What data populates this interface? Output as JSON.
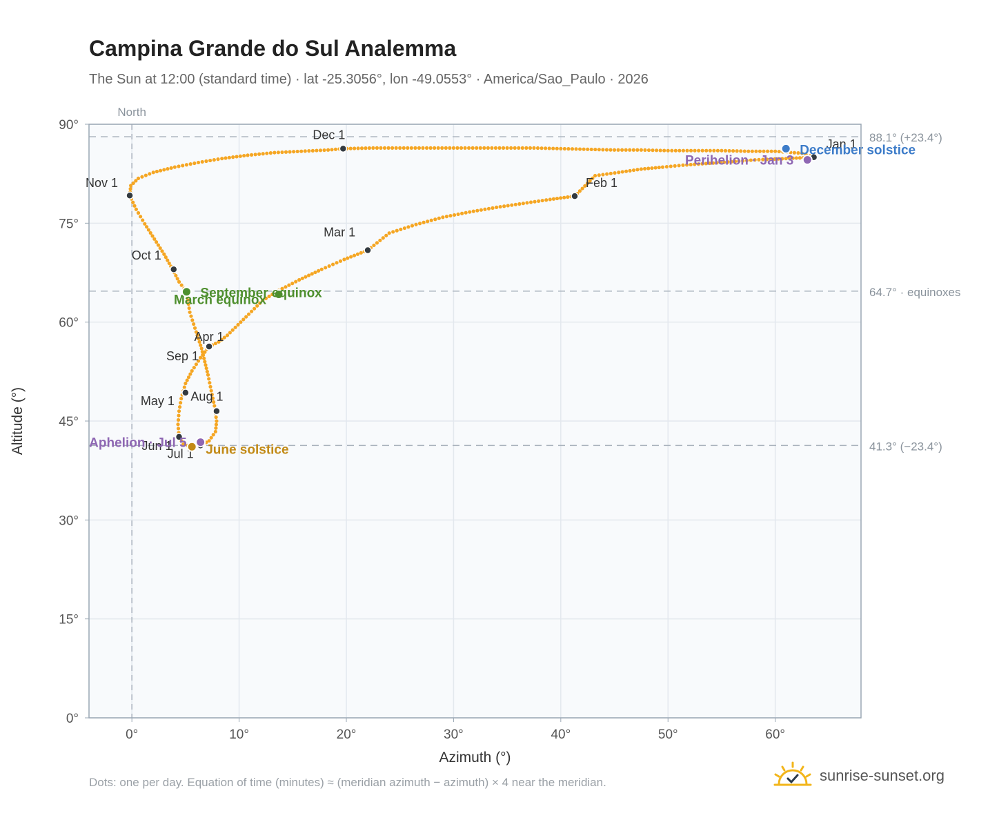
{
  "title": "Campina Grande do Sul Analemma",
  "subtitle": "The Sun at 12:00 (standard time) · lat -25.3056°, lon -49.0553° · America/Sao_Paulo · 2026",
  "footnote": "Dots: one per day. Equation of time (minutes) ≈ (meridian azimuth − azimuth) × 4 near the meridian.",
  "brand": {
    "name": "sunrise-sunset.org",
    "logo_icon": "sun-check-icon"
  },
  "colors": {
    "path": "#f5a623",
    "month_marker": "#333a40",
    "equinox": "#4e8f2e",
    "solstice_june": "#c28a16",
    "solstice_december": "#3d7cc9",
    "perihelion_aphelion": "#8e67b3",
    "plot_bg": "#f8fafc",
    "grid": "#e3e8ee",
    "reference_line": "#a9b2bc"
  },
  "chart_data": {
    "type": "scatter",
    "xlabel": "Azimuth (°)",
    "ylabel": "Altitude (°)",
    "xlim": [
      -4,
      68
    ],
    "ylim": [
      0,
      90
    ],
    "x_ticks": [
      0,
      10,
      20,
      30,
      40,
      50,
      60
    ],
    "x_tick_labels": [
      "0°",
      "10°",
      "20°",
      "30°",
      "40°",
      "50°",
      "60°"
    ],
    "y_ticks": [
      0,
      15,
      30,
      45,
      60,
      75,
      90
    ],
    "y_tick_labels": [
      "0°",
      "15°",
      "30°",
      "45°",
      "60°",
      "75°",
      "90°"
    ],
    "grid": true,
    "north_line": {
      "x": 0,
      "label": "North"
    },
    "reference_lines": [
      {
        "y": 88.1,
        "label": "88.1° (+23.4°)"
      },
      {
        "y": 64.7,
        "label": "64.7° · equinoxes"
      },
      {
        "y": 41.3,
        "label": "41.3° (−23.4°)"
      }
    ],
    "analemma_daily_points": [
      [
        63.6,
        85.0
      ],
      [
        62.3,
        84.9
      ],
      [
        61.0,
        84.8
      ],
      [
        59.6,
        84.7
      ],
      [
        58.1,
        84.6
      ],
      [
        56.6,
        84.4
      ],
      [
        54.9,
        84.2
      ],
      [
        53.2,
        84.0
      ],
      [
        51.4,
        83.8
      ],
      [
        49.5,
        83.5
      ],
      [
        47.5,
        83.2
      ],
      [
        45.4,
        82.7
      ],
      [
        43.2,
        82.2
      ],
      [
        41.3,
        79.1
      ],
      [
        39.0,
        78.6
      ],
      [
        36.5,
        78.0
      ],
      [
        34.0,
        77.4
      ],
      [
        31.5,
        76.7
      ],
      [
        29.0,
        75.9
      ],
      [
        26.5,
        74.8
      ],
      [
        24.0,
        73.5
      ],
      [
        22.0,
        70.9
      ],
      [
        19.8,
        69.5
      ],
      [
        17.7,
        68.0
      ],
      [
        15.6,
        66.4
      ],
      [
        13.7,
        64.8
      ],
      [
        12.2,
        63.3
      ],
      [
        10.9,
        61.2
      ],
      [
        9.9,
        59.6
      ],
      [
        8.9,
        58.0
      ],
      [
        8.1,
        57.0
      ],
      [
        7.2,
        56.3
      ],
      [
        6.4,
        54.6
      ],
      [
        5.6,
        52.6
      ],
      [
        5.0,
        50.7
      ],
      [
        4.6,
        48.4
      ],
      [
        4.4,
        46.5
      ],
      [
        4.3,
        44.5
      ],
      [
        4.4,
        42.6
      ],
      [
        4.8,
        41.5
      ],
      [
        5.6,
        41.1
      ],
      [
        6.4,
        41.3
      ],
      [
        7.2,
        42.0
      ],
      [
        7.8,
        43.4
      ],
      [
        7.9,
        45.0
      ],
      [
        7.7,
        47.3
      ],
      [
        7.4,
        49.6
      ],
      [
        7.1,
        52.0
      ],
      [
        6.8,
        54.0
      ],
      [
        6.5,
        56.0
      ],
      [
        6.0,
        58.5
      ],
      [
        5.4,
        61.5
      ],
      [
        5.1,
        64.6
      ],
      [
        4.4,
        66.1
      ],
      [
        3.8,
        68.0
      ],
      [
        3.0,
        70.3
      ],
      [
        2.1,
        72.6
      ],
      [
        1.2,
        74.9
      ],
      [
        0.4,
        77.1
      ],
      [
        -0.2,
        79.2
      ],
      [
        -0.1,
        80.7
      ],
      [
        0.6,
        81.8
      ],
      [
        2.0,
        82.7
      ],
      [
        4.0,
        83.5
      ],
      [
        6.2,
        84.2
      ],
      [
        8.4,
        84.8
      ],
      [
        10.8,
        85.3
      ],
      [
        13.3,
        85.7
      ],
      [
        15.8,
        85.9
      ],
      [
        18.3,
        86.1
      ],
      [
        19.7,
        86.3
      ],
      [
        22.5,
        86.4
      ],
      [
        25.0,
        86.4
      ],
      [
        27.5,
        86.4
      ],
      [
        30.0,
        86.4
      ],
      [
        32.5,
        86.4
      ],
      [
        35.0,
        86.4
      ],
      [
        37.5,
        86.4
      ],
      [
        40.0,
        86.3
      ],
      [
        42.5,
        86.2
      ],
      [
        45.0,
        86.1
      ],
      [
        47.5,
        86.1
      ],
      [
        50.0,
        86.0
      ],
      [
        52.5,
        86.0
      ],
      [
        55.0,
        86.0
      ],
      [
        57.5,
        85.9
      ],
      [
        60.0,
        85.9
      ],
      [
        62.5,
        85.6
      ],
      [
        63.6,
        85.0
      ]
    ],
    "month_markers": [
      {
        "label": "Jan 1",
        "x": 63.6,
        "y": 85.0
      },
      {
        "label": "Feb 1",
        "x": 41.3,
        "y": 79.1
      },
      {
        "label": "Mar 1",
        "x": 22.0,
        "y": 70.9
      },
      {
        "label": "Apr 1",
        "x": 7.2,
        "y": 56.3
      },
      {
        "label": "May 1",
        "x": 5.0,
        "y": 49.3
      },
      {
        "label": "Jun 1",
        "x": 4.4,
        "y": 42.6
      },
      {
        "label": "Jul 1",
        "x": 6.4,
        "y": 41.3
      },
      {
        "label": "Aug 1",
        "x": 7.9,
        "y": 46.5
      },
      {
        "label": "Sep 1",
        "x": 7.2,
        "y": 56.3
      },
      {
        "label": "Oct 1",
        "x": 3.9,
        "y": 68.0
      },
      {
        "label": "Nov 1",
        "x": -0.2,
        "y": 79.2
      },
      {
        "label": "Dec 1",
        "x": 19.7,
        "y": 86.3
      }
    ],
    "events": [
      {
        "label": "March equinox",
        "x": 13.7,
        "y": 64.2,
        "kind": "equinox"
      },
      {
        "label": "September equinox",
        "x": 5.1,
        "y": 64.6,
        "kind": "equinox"
      },
      {
        "label": "June solstice",
        "x": 5.6,
        "y": 41.1,
        "kind": "solstice_june"
      },
      {
        "label": "December solstice",
        "x": 61.0,
        "y": 86.3,
        "kind": "solstice_december"
      },
      {
        "label": "Perihelion · Jan 3",
        "x": 63.0,
        "y": 84.6,
        "kind": "perihelion_aphelion"
      },
      {
        "label": "Aphelion · Jul 5",
        "x": 6.4,
        "y": 41.8,
        "kind": "perihelion_aphelion"
      }
    ]
  }
}
